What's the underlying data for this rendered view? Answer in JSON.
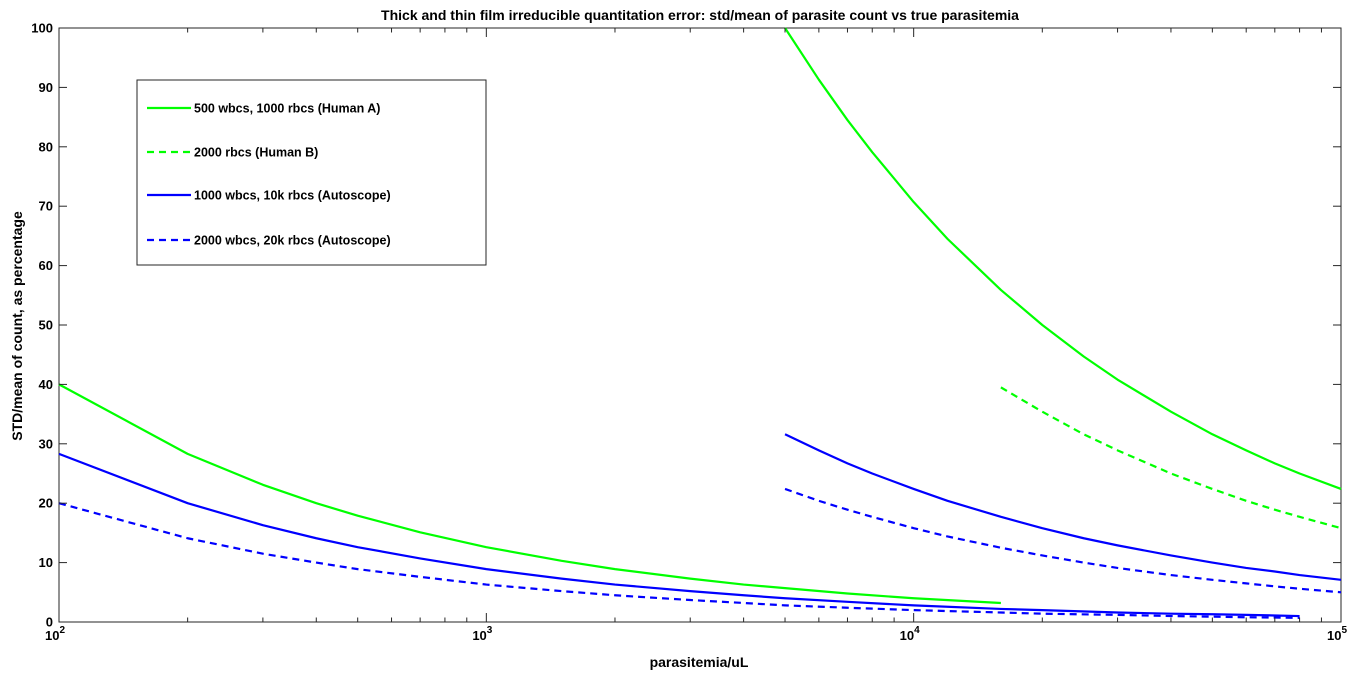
{
  "chart_data": {
    "type": "line",
    "title": "Thick and thin film irreducible quantitation error: std/mean of parasite count vs true parasitemia",
    "xlabel": "parasitemia/uL",
    "ylabel": "STD/mean of count, as percentage",
    "xscale": "log",
    "xlim": [
      100,
      100000
    ],
    "ylim": [
      0,
      100
    ],
    "xticks": [
      {
        "base": "10",
        "exp": "2",
        "value": 100
      },
      {
        "base": "10",
        "exp": "3",
        "value": 1000
      },
      {
        "base": "10",
        "exp": "4",
        "value": 10000
      },
      {
        "base": "10",
        "exp": "5",
        "value": 100000
      }
    ],
    "yticks": [
      "0",
      "10",
      "20",
      "30",
      "40",
      "50",
      "60",
      "70",
      "80",
      "90",
      "100"
    ],
    "grid": false,
    "legend_position": "top-left",
    "series": [
      {
        "name": "500 wbcs, 1000 rbcs (Human A)",
        "color": "#00ff00",
        "dash": "solid",
        "segments": [
          {
            "x": [
              100,
              200,
              300,
              400,
              500,
              700,
              1000,
              1500,
              2000,
              3000,
              4000,
              5000,
              7000,
              10000,
              16000
            ],
            "y": [
              40,
              28.3,
              23.1,
              20,
              17.9,
              15.1,
              12.6,
              10.3,
              8.9,
              7.3,
              6.3,
              5.7,
              4.8,
              4,
              3.2
            ]
          },
          {
            "x": [
              5000,
              6000,
              7000,
              8000,
              10000,
              12000,
              16000,
              20000,
              25000,
              30000,
              40000,
              50000,
              60000,
              70000,
              80000,
              100000
            ],
            "y": [
              100,
              91.3,
              84.5,
              79.1,
              70.7,
              64.5,
              55.9,
              50,
              44.7,
              40.8,
              35.4,
              31.6,
              28.9,
              26.7,
              25,
              22.4
            ]
          }
        ]
      },
      {
        "name": "2000 rbcs (Human B)",
        "color": "#00ff00",
        "dash": "dashed",
        "segments": [
          {
            "x": [
              16000,
              20000,
              25000,
              30000,
              40000,
              50000,
              60000,
              70000,
              80000,
              100000
            ],
            "y": [
              39.5,
              35.4,
              31.6,
              28.9,
              25,
              22.4,
              20.4,
              18.9,
              17.7,
              15.8
            ]
          }
        ]
      },
      {
        "name": "1000 wbcs, 10k rbcs (Autoscope)",
        "color": "#0000ff",
        "dash": "solid",
        "segments": [
          {
            "x": [
              100,
              200,
              300,
              400,
              500,
              700,
              1000,
              1500,
              2000,
              3000,
              4000,
              5000,
              7000,
              10000,
              16000,
              20000,
              30000,
              40000,
              50000,
              60000,
              70000,
              80000
            ],
            "y": [
              28.3,
              20,
              16.3,
              14.1,
              12.6,
              10.7,
              8.9,
              7.3,
              6.3,
              5.2,
              4.5,
              4,
              3.4,
              2.8,
              2.2,
              2,
              1.6,
              1.4,
              1.3,
              1.2,
              1.1,
              1
            ]
          },
          {
            "x": [
              5000,
              6000,
              7000,
              8000,
              10000,
              12000,
              16000,
              20000,
              25000,
              30000,
              40000,
              50000,
              60000,
              70000,
              80000,
              100000
            ],
            "y": [
              31.6,
              28.9,
              26.7,
              25,
              22.4,
              20.4,
              17.7,
              15.8,
              14.1,
              12.9,
              11.2,
              10,
              9.1,
              8.5,
              7.9,
              7.1
            ]
          }
        ]
      },
      {
        "name": "2000 wbcs, 20k rbcs (Autoscope)",
        "color": "#0000ff",
        "dash": "dashed",
        "segments": [
          {
            "x": [
              100,
              200,
              300,
              400,
              500,
              700,
              1000,
              1500,
              2000,
              3000,
              4000,
              5000,
              7000,
              10000,
              16000,
              20000,
              30000,
              40000,
              50000,
              60000,
              70000,
              80000
            ],
            "y": [
              20,
              14.1,
              11.5,
              10,
              8.9,
              7.6,
              6.3,
              5.2,
              4.5,
              3.7,
              3.2,
              2.8,
              2.4,
              2,
              1.6,
              1.4,
              1.2,
              1,
              0.9,
              0.8,
              0.75,
              0.7
            ]
          },
          {
            "x": [
              5000,
              6000,
              7000,
              8000,
              10000,
              12000,
              16000,
              20000,
              25000,
              30000,
              40000,
              50000,
              60000,
              70000,
              80000,
              100000
            ],
            "y": [
              22.4,
              20.4,
              18.9,
              17.7,
              15.8,
              14.4,
              12.5,
              11.2,
              10,
              9.1,
              7.9,
              7.1,
              6.5,
              6,
              5.6,
              5
            ]
          }
        ]
      }
    ]
  }
}
